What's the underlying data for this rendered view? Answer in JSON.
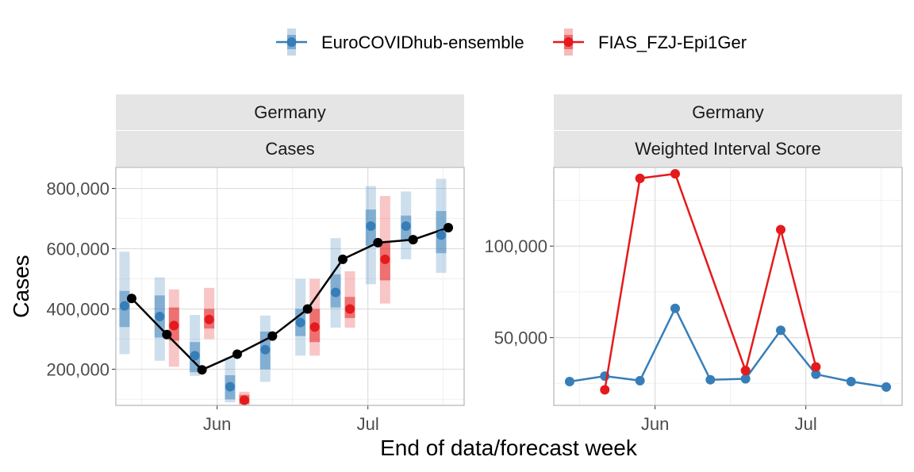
{
  "legend": {
    "position": "top",
    "items": [
      {
        "label": "EuroCOVIDhub-ensemble",
        "color": "#377EB8"
      },
      {
        "label": "FIAS_FZJ-Epi1Ger",
        "color": "#E41A1C"
      }
    ]
  },
  "x_axis_title": "End of data/forecast week",
  "truth_color": "#000000",
  "chart_data": [
    {
      "type": "line",
      "strip_top": "Germany",
      "strip_bottom": "Cases",
      "ylabel": "Cases",
      "x_ticks": [
        "Jun",
        "Jul"
      ],
      "y_ticks": [
        "200,000",
        "400,000",
        "600,000",
        "800,000"
      ],
      "ylim": [
        80000,
        870000
      ],
      "grid": true,
      "x": [
        "2021-05-15",
        "2021-05-22",
        "2021-05-29",
        "2021-06-05",
        "2021-06-12",
        "2021-06-19",
        "2021-06-26",
        "2021-07-03",
        "2021-07-10",
        "2021-07-17"
      ],
      "truth": [
        435000,
        315000,
        198000,
        250000,
        310000,
        400000,
        565000,
        620000,
        630000,
        670000
      ],
      "series": [
        {
          "name": "EuroCOVIDhub-ensemble",
          "median": [
            410000,
            375000,
            245000,
            142000,
            265000,
            355000,
            455000,
            675000,
            675000,
            645000
          ],
          "inner": [
            [
              340000,
              460000
            ],
            [
              305000,
              445000
            ],
            [
              190000,
              290000
            ],
            [
              100000,
              180000
            ],
            [
              200000,
              325000
            ],
            [
              310000,
              400000
            ],
            [
              405000,
              515000
            ],
            [
              610000,
              730000
            ],
            [
              625000,
              710000
            ],
            [
              585000,
              725000
            ]
          ],
          "outer": [
            [
              250000,
              590000
            ],
            [
              228000,
              505000
            ],
            [
              178000,
              380000
            ],
            [
              90000,
              240000
            ],
            [
              158000,
              378000
            ],
            [
              245000,
              500000
            ],
            [
              338000,
              635000
            ],
            [
              482000,
              808000
            ],
            [
              565000,
              790000
            ],
            [
              520000,
              832000
            ]
          ]
        },
        {
          "name": "FIAS_FZJ-Epi1Ger",
          "median": [
            null,
            345000,
            365000,
            97000,
            null,
            340000,
            400000,
            565000,
            null,
            null
          ],
          "inner": [
            null,
            [
              295000,
              405000
            ],
            [
              335000,
              400000
            ],
            [
              85000,
              115000
            ],
            null,
            [
              290000,
              400000
            ],
            [
              370000,
              440000
            ],
            [
              495000,
              620000
            ],
            null,
            null
          ],
          "outer": [
            null,
            [
              208000,
              465000
            ],
            [
              300000,
              470000
            ],
            [
              80000,
              125000
            ],
            null,
            [
              245000,
              500000
            ],
            [
              338000,
              525000
            ],
            [
              418000,
              775000
            ],
            null,
            null
          ]
        }
      ]
    },
    {
      "type": "line",
      "strip_top": "Germany",
      "strip_bottom": "Weighted Interval Score",
      "x_ticks": [
        "Jun",
        "Jul"
      ],
      "y_ticks": [
        "50,000",
        "100,000"
      ],
      "ylim": [
        13000,
        143000
      ],
      "grid": true,
      "x": [
        "2021-05-15",
        "2021-05-22",
        "2021-05-29",
        "2021-06-05",
        "2021-06-12",
        "2021-06-19",
        "2021-06-26",
        "2021-07-03",
        "2021-07-10",
        "2021-07-17"
      ],
      "series": [
        {
          "name": "EuroCOVIDhub-ensemble",
          "values": [
            26000,
            29000,
            26500,
            66000,
            27000,
            27500,
            54000,
            30000,
            26000,
            23000
          ]
        },
        {
          "name": "FIAS_FZJ-Epi1Ger",
          "values": [
            null,
            21500,
            137000,
            139500,
            null,
            32000,
            109000,
            34000,
            null,
            null
          ]
        }
      ]
    }
  ]
}
